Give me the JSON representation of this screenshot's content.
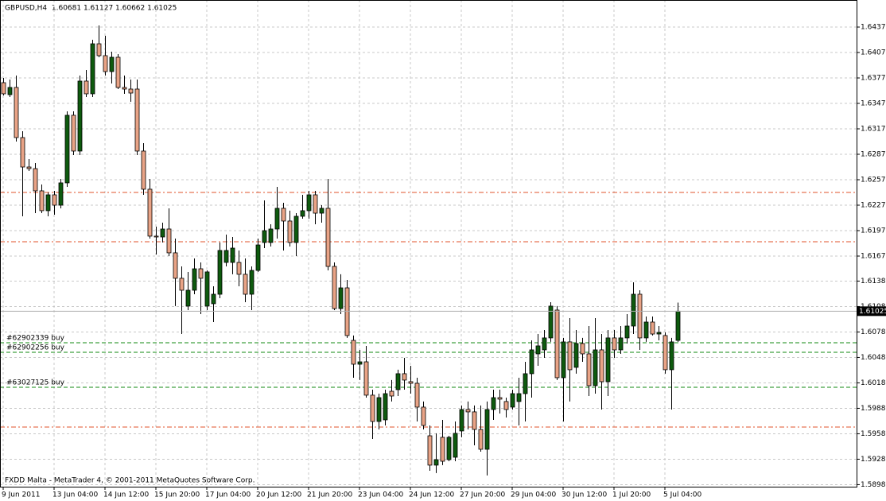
{
  "chart_data": {
    "type": "candlestick",
    "title": "GBPUSD,H4  1.60681 1.61127 1.60662 1.61025",
    "footer": "FXDD Malta - MetaTrader 4, © 2001-2011 MetaQuotes Software Corp.",
    "categories": [
      "9 Jun 2011",
      null,
      null,
      null,
      null,
      null,
      null,
      null,
      "13 Jun 04:00",
      null,
      null,
      null,
      null,
      null,
      null,
      null,
      "14 Jun 12:00",
      null,
      null,
      null,
      null,
      null,
      null,
      null,
      "15 Jun 20:00",
      null,
      null,
      null,
      null,
      null,
      null,
      null,
      "17 Jun 04:00",
      null,
      null,
      null,
      null,
      null,
      null,
      null,
      "20 Jun 12:00",
      null,
      null,
      null,
      null,
      null,
      null,
      null,
      "21 Jun 20:00",
      null,
      null,
      null,
      null,
      null,
      null,
      null,
      "23 Jun 04:00",
      null,
      null,
      null,
      null,
      null,
      null,
      null,
      "24 Jun 12:00",
      null,
      null,
      null,
      null,
      null,
      null,
      null,
      "27 Jun 20:00",
      null,
      null,
      null,
      null,
      null,
      null,
      null,
      "29 Jun 04:00",
      null,
      null,
      null,
      null,
      null,
      null,
      null,
      "30 Jun 12:00",
      null,
      null,
      null,
      null,
      null,
      null,
      null,
      "1 Jul 20:00",
      null,
      null,
      null,
      null,
      null,
      null,
      null,
      "5 Jul 04:00",
      null,
      null
    ],
    "open": [
      1.63719,
      1.63578,
      1.63663,
      1.63072,
      1.62725,
      1.62706,
      1.62444,
      1.6221,
      1.62397,
      1.62275,
      1.62538,
      1.63335,
      1.62913,
      1.63738,
      1.63588,
      1.64178,
      1.64038,
      1.6385,
      1.64019,
      1.63663,
      1.63644,
      1.63644,
      1.62913,
      1.62463,
      1.6191,
      1.619,
      1.61994,
      1.61713,
      1.61413,
      1.61085,
      1.61272,
      1.61525,
      1.61085,
      1.61113,
      1.61225,
      1.616,
      1.616,
      1.616,
      1.6146,
      1.61225,
      1.61506,
      1.61835,
      1.61835,
      1.61994,
      1.62238,
      1.62088,
      1.61835,
      1.62144,
      1.6221,
      1.62397,
      1.62181,
      1.62238,
      1.61553,
      1.61056,
      1.613,
      1.60681,
      1.604,
      1.60428,
      1.60035,
      1.59725,
      1.59744,
      1.60081,
      1.601,
      1.60288,
      1.60194,
      1.60175,
      1.59894,
      1.59556,
      1.5921,
      1.59538,
      1.59275,
      1.59303,
      1.59613,
      1.59866,
      1.59838,
      1.59631,
      1.59397,
      1.59866,
      1.60006,
      1.5996,
      1.59894,
      1.5996,
      1.60053,
      1.60288,
      1.60522,
      1.60569,
      1.6071,
      1.61038,
      1.60241,
      1.60663,
      1.60363,
      1.60644,
      1.60522,
      1.60147,
      1.60569,
      1.60194,
      1.6071,
      1.60569,
      1.6071,
      1.6085,
      1.61225,
      1.6071,
      1.60897,
      1.60756,
      1.60738,
      1.60335,
      1.60681
    ],
    "high": [
      1.63775,
      1.63756,
      1.63803,
      1.63147,
      1.62819,
      1.62772,
      1.62519,
      1.62425,
      1.62444,
      1.62585,
      1.63381,
      1.63381,
      1.63803,
      1.63869,
      1.64225,
      1.64394,
      1.64272,
      1.64085,
      1.64056,
      1.63803,
      1.63756,
      1.63756,
      1.63006,
      1.62585,
      1.62022,
      1.62069,
      1.62238,
      1.61881,
      1.61553,
      1.61488,
      1.61647,
      1.616,
      1.61506,
      1.61319,
      1.61835,
      1.61928,
      1.619,
      1.61741,
      1.61647,
      1.61553,
      1.61881,
      1.62331,
      1.6205,
      1.62491,
      1.62303,
      1.6221,
      1.62181,
      1.62397,
      1.62444,
      1.62444,
      1.62275,
      1.62585,
      1.616,
      1.6146,
      1.61394,
      1.60738,
      1.60569,
      1.60616,
      1.601,
      1.60053,
      1.601,
      1.60213,
      1.60335,
      1.60475,
      1.60381,
      1.60241,
      1.5996,
      1.59678,
      1.59585,
      1.59744,
      1.59556,
      1.59725,
      1.59913,
      1.5996,
      1.59913,
      1.59913,
      1.5996,
      1.601,
      1.601,
      1.60006,
      1.601,
      1.60241,
      1.60428,
      1.60681,
      1.60756,
      1.60803,
      1.61131,
      1.61085,
      1.6071,
      1.60944,
      1.60803,
      1.6071,
      1.6085,
      1.60944,
      1.60756,
      1.60803,
      1.60803,
      1.6085,
      1.60991,
      1.61366,
      1.61272,
      1.60963,
      1.60963,
      1.6085,
      1.60775,
      1.6071,
      1.61127
    ],
    "low": [
      1.63569,
      1.6355,
      1.63025,
      1.62144,
      1.62678,
      1.62181,
      1.62181,
      1.62144,
      1.62163,
      1.62238,
      1.62491,
      1.62866,
      1.62866,
      1.6355,
      1.6355,
      1.64019,
      1.63803,
      1.6371,
      1.63644,
      1.63588,
      1.63494,
      1.62866,
      1.62397,
      1.61881,
      1.61694,
      1.61835,
      1.61675,
      1.61085,
      1.60756,
      1.61038,
      1.61225,
      1.60991,
      1.61038,
      1.60897,
      1.61178,
      1.61553,
      1.6146,
      1.61319,
      1.61131,
      1.61038,
      1.61488,
      1.61769,
      1.61788,
      1.61881,
      1.61741,
      1.61788,
      1.61675,
      1.62116,
      1.62116,
      1.6205,
      1.62069,
      1.61506,
      1.61038,
      1.60991,
      1.6071,
      1.60241,
      1.60213,
      1.60006,
      1.59519,
      1.59631,
      1.59678,
      1.5996,
      1.60025,
      1.601,
      1.60053,
      1.59725,
      1.59631,
      1.59144,
      1.59116,
      1.5921,
      1.59256,
      1.59256,
      1.59538,
      1.59631,
      1.59444,
      1.59369,
      1.59088,
      1.59744,
      1.59819,
      1.59772,
      1.59866,
      1.59678,
      1.59725,
      1.60006,
      1.60381,
      1.60475,
      1.60663,
      1.60213,
      1.59725,
      1.5996,
      1.60288,
      1.60428,
      1.60025,
      1.60053,
      1.59866,
      1.60025,
      1.60475,
      1.60522,
      1.60644,
      1.60756,
      1.60569,
      1.60663,
      1.60738,
      1.60681,
      1.60288,
      1.59866,
      1.60662
    ],
    "close": [
      1.63588,
      1.63663,
      1.63072,
      1.62725,
      1.62706,
      1.62444,
      1.6221,
      1.62397,
      1.62275,
      1.62538,
      1.63335,
      1.62913,
      1.63738,
      1.63588,
      1.64178,
      1.64038,
      1.6385,
      1.64019,
      1.63663,
      1.63644,
      1.63597,
      1.62913,
      1.62463,
      1.6191,
      1.619,
      1.61994,
      1.61713,
      1.61413,
      1.61272,
      1.61272,
      1.61525,
      1.61413,
      1.61488,
      1.61225,
      1.61741,
      1.61741,
      1.61769,
      1.6146,
      1.61225,
      1.61506,
      1.61806,
      1.61975,
      1.61994,
      1.62238,
      1.62088,
      1.61835,
      1.62144,
      1.6221,
      1.62397,
      1.62181,
      1.62238,
      1.61553,
      1.61056,
      1.613,
      1.60738,
      1.604,
      1.60428,
      1.60035,
      1.59725,
      1.60006,
      1.60053,
      1.60025,
      1.60288,
      1.60213,
      1.60175,
      1.59894,
      1.59678,
      1.5921,
      1.59275,
      1.59256,
      1.59538,
      1.59585,
      1.59866,
      1.59838,
      1.59631,
      1.59397,
      1.59866,
      1.60006,
      1.59988,
      1.59866,
      1.60053,
      1.60053,
      1.60288,
      1.60569,
      1.60616,
      1.6071,
      1.61085,
      1.60241,
      1.60663,
      1.60335,
      1.60644,
      1.60522,
      1.60147,
      1.60569,
      1.60194,
      1.6071,
      1.60569,
      1.6071,
      1.6085,
      1.61225,
      1.6071,
      1.60897,
      1.60756,
      1.60775,
      1.60335,
      1.60663,
      1.61025
    ],
    "up_color": "#0e5a0e",
    "down_color": "#e9a386",
    "ylim": [
      1.58956,
      1.64694
    ],
    "yticks": [
      1.64375,
      1.64075,
      1.63775,
      1.63475,
      1.63175,
      1.62875,
      1.62575,
      1.62275,
      1.61975,
      1.61675,
      {
        "value": 1.6138,
        "label": "1.61380"
      },
      {
        "value": 1.6108,
        "label": "1.61080"
      },
      {
        "value": 1.6078,
        "label": "1.60780"
      },
      {
        "value": 1.6048,
        "label": "1.60480"
      },
      {
        "value": 1.6018,
        "label": "1.60180"
      },
      {
        "value": 1.5988,
        "label": "1.59880"
      },
      {
        "value": 1.5958,
        "label": "1.59580"
      },
      {
        "value": 1.5928,
        "label": "1.59280"
      },
      {
        "value": 1.5898,
        "label": "1.58980"
      }
    ],
    "grid": true,
    "level_color": "#e0532b",
    "levels": [
      1.62425,
      1.61844,
      1.59659
    ],
    "order_color": "#118a11",
    "orders": [
      {
        "label": "#62902339 buy",
        "value": 1.60653
      },
      {
        "label": "#62902256 buy",
        "value": 1.60541
      },
      {
        "label": "#63027125 buy",
        "value": 1.60128
      }
    ]
  }
}
